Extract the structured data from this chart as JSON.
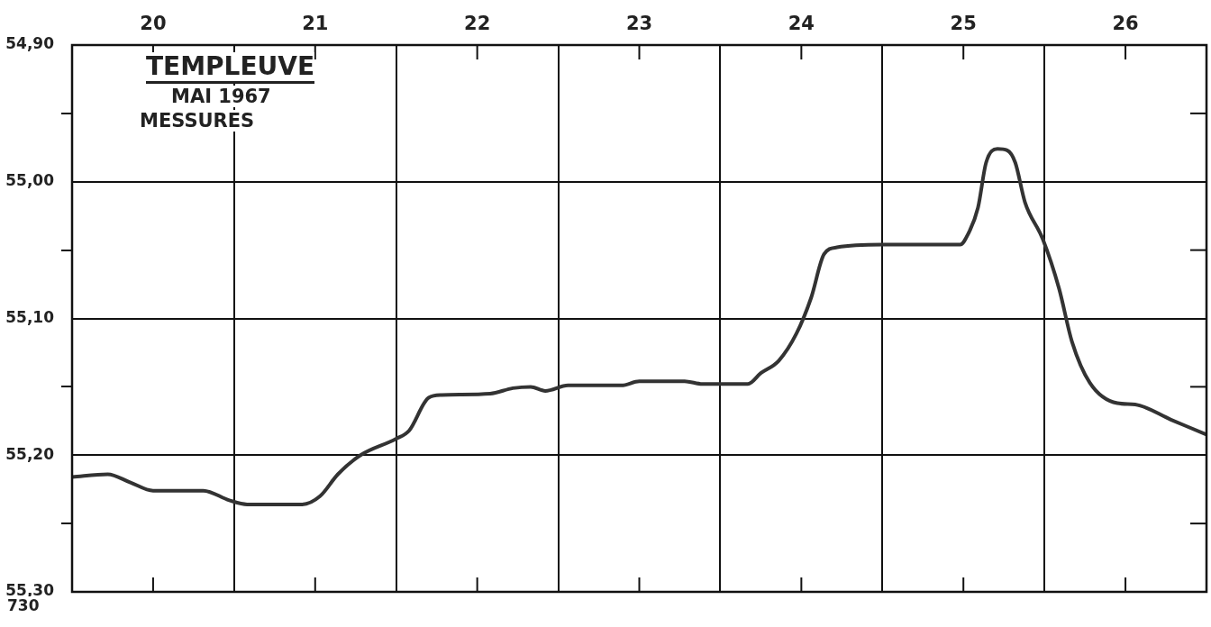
{
  "chart_data": {
    "type": "line",
    "title": "TEMPLEUVE",
    "subtitle": "MAI 1967",
    "annotations": [
      "MESSURES",
      "730"
    ],
    "xlim": [
      19.5,
      26.5
    ],
    "xticks": [
      20,
      {
        "value": 20.5,
        "label": null
      },
      21,
      {
        "value": 21.5,
        "label": null
      },
      22,
      {
        "value": 22.5,
        "label": null
      },
      23,
      {
        "value": 23.5,
        "label": null
      },
      24,
      {
        "value": 24.5,
        "label": null
      },
      25,
      {
        "value": 25.5,
        "label": null
      },
      26
    ],
    "ylim": [
      55.3,
      54.9
    ],
    "yticks": [
      {
        "value": 54.9,
        "label": "54,90"
      },
      {
        "value": 54.95,
        "label": null
      },
      {
        "value": 55.0,
        "label": "55,00"
      },
      {
        "value": 55.05,
        "label": null
      },
      {
        "value": 55.1,
        "label": "55,10"
      },
      {
        "value": 55.15,
        "label": null
      },
      {
        "value": 55.2,
        "label": "55,20"
      },
      {
        "value": 55.25,
        "label": null
      },
      {
        "value": 55.3,
        "label": "55,30"
      }
    ],
    "grid": true,
    "legend": false,
    "marker": "none",
    "line_style": "solid",
    "series": [
      {
        "color": "#333333",
        "x": [
          19.5,
          19.72,
          19.86,
          20.0,
          20.31,
          20.47,
          20.58,
          20.92,
          21.03,
          21.14,
          21.28,
          21.5,
          21.58,
          21.7,
          21.78,
          22.08,
          22.22,
          22.33,
          22.42,
          22.56,
          22.89,
          23.0,
          23.28,
          23.39,
          23.67,
          23.75,
          23.86,
          23.97,
          24.06,
          24.14,
          24.22,
          24.5,
          24.98,
          25.03,
          25.09,
          25.14,
          25.21,
          25.27,
          25.32,
          25.38,
          25.49,
          25.59,
          25.67,
          25.78,
          25.95,
          26.06,
          26.28,
          26.5
        ],
        "values": [
          55.216,
          55.214,
          55.22,
          55.226,
          55.226,
          55.233,
          55.236,
          55.236,
          55.23,
          55.214,
          55.2,
          55.188,
          55.182,
          55.158,
          55.156,
          55.155,
          55.151,
          55.15,
          55.153,
          55.149,
          55.149,
          55.146,
          55.146,
          55.148,
          55.148,
          55.14,
          55.131,
          55.111,
          55.085,
          55.053,
          55.048,
          55.046,
          55.046,
          55.038,
          55.019,
          54.986,
          54.976,
          54.977,
          54.986,
          55.015,
          55.042,
          55.078,
          55.117,
          55.147,
          55.162,
          55.163,
          55.174,
          55.185
        ]
      }
    ]
  }
}
